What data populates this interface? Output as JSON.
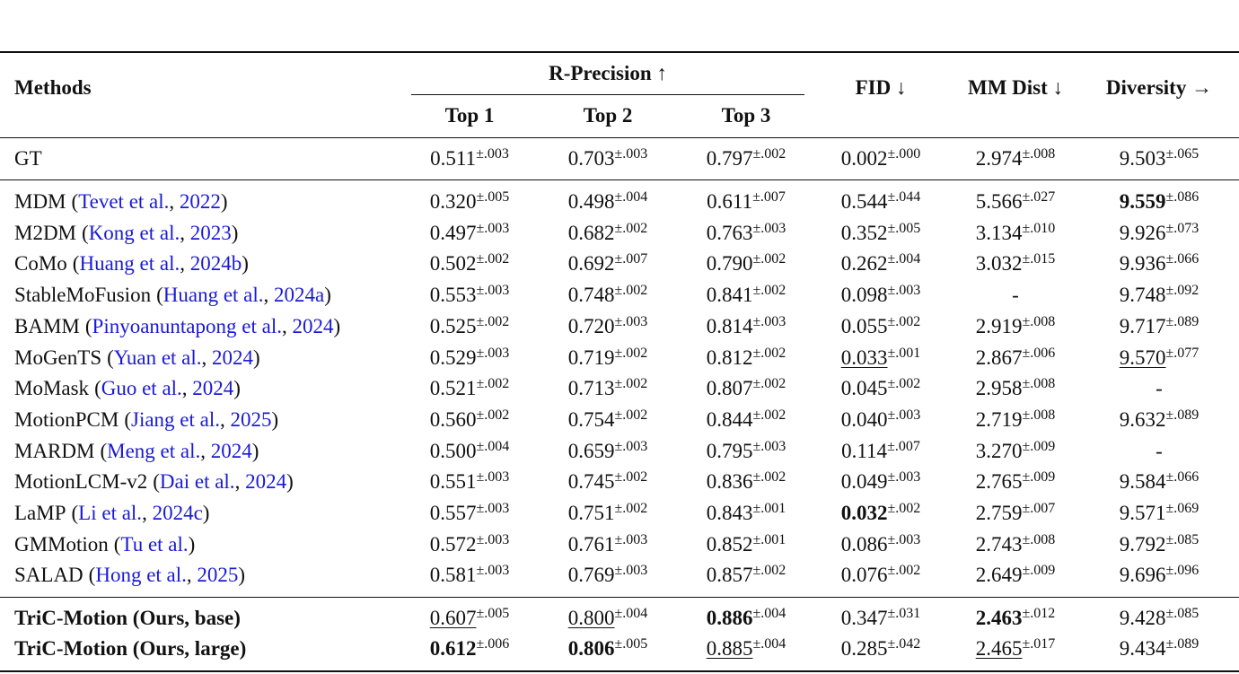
{
  "table": {
    "header": {
      "methods": "Methods",
      "r_precision": "R-Precision ↑",
      "top": [
        "Top 1",
        "Top 2",
        "Top 3"
      ],
      "fid": "FID ↓",
      "mm_dist": "MM Dist ↓",
      "diversity": "Diversity →"
    },
    "groups": [
      {
        "rows": [
          {
            "method": "GT",
            "cells": [
              {
                "v": "0.511",
                "e": "±.003"
              },
              {
                "v": "0.703",
                "e": "±.003"
              },
              {
                "v": "0.797",
                "e": "±.002"
              },
              {
                "v": "0.002",
                "e": "±.000"
              },
              {
                "v": "2.974",
                "e": "±.008"
              },
              {
                "v": "9.503",
                "e": "±.065"
              }
            ]
          }
        ]
      },
      {
        "rows": [
          {
            "method": "MDM",
            "cite": [
              "(",
              {
                "link": "Tevet et al."
              },
              ", ",
              {
                "link": "2022"
              },
              ")"
            ],
            "cells": [
              {
                "v": "0.320",
                "e": "±.005"
              },
              {
                "v": "0.498",
                "e": "±.004"
              },
              {
                "v": "0.611",
                "e": "±.007"
              },
              {
                "v": "0.544",
                "e": "±.044"
              },
              {
                "v": "5.566",
                "e": "±.027"
              },
              {
                "v": "9.559",
                "e": "±.086",
                "bold": true
              }
            ]
          },
          {
            "method": "M2DM",
            "cite": [
              "(",
              {
                "link": "Kong et al."
              },
              ", ",
              {
                "link": "2023"
              },
              ")"
            ],
            "cells": [
              {
                "v": "0.497",
                "e": "±.003"
              },
              {
                "v": "0.682",
                "e": "±.002"
              },
              {
                "v": "0.763",
                "e": "±.003"
              },
              {
                "v": "0.352",
                "e": "±.005"
              },
              {
                "v": "3.134",
                "e": "±.010"
              },
              {
                "v": "9.926",
                "e": "±.073"
              }
            ]
          },
          {
            "method": "CoMo",
            "cite": [
              "(",
              {
                "link": "Huang et al."
              },
              ", ",
              {
                "link": "2024b"
              },
              ")"
            ],
            "cells": [
              {
                "v": "0.502",
                "e": "±.002"
              },
              {
                "v": "0.692",
                "e": "±.007"
              },
              {
                "v": "0.790",
                "e": "±.002"
              },
              {
                "v": "0.262",
                "e": "±.004"
              },
              {
                "v": "3.032",
                "e": "±.015"
              },
              {
                "v": "9.936",
                "e": "±.066"
              }
            ]
          },
          {
            "method": "StableMoFusion",
            "cite": [
              "(",
              {
                "link": "Huang et al."
              },
              ", ",
              {
                "link": "2024a"
              },
              ")"
            ],
            "cells": [
              {
                "v": "0.553",
                "e": "±.003"
              },
              {
                "v": "0.748",
                "e": "±.002"
              },
              {
                "v": "0.841",
                "e": "±.002"
              },
              {
                "v": "0.098",
                "e": "±.003"
              },
              {
                "v": "-"
              },
              {
                "v": "9.748",
                "e": "±.092"
              }
            ]
          },
          {
            "method": "BAMM",
            "cite": [
              "(",
              {
                "link": "Pinyoanuntapong et al."
              },
              ", ",
              {
                "link": "2024"
              },
              ")"
            ],
            "cells": [
              {
                "v": "0.525",
                "e": "±.002"
              },
              {
                "v": "0.720",
                "e": "±.003"
              },
              {
                "v": "0.814",
                "e": "±.003"
              },
              {
                "v": "0.055",
                "e": "±.002"
              },
              {
                "v": "2.919",
                "e": "±.008"
              },
              {
                "v": "9.717",
                "e": "±.089"
              }
            ]
          },
          {
            "method": "MoGenTS",
            "cite": [
              "(",
              {
                "link": "Yuan et al."
              },
              ", ",
              {
                "link": "2024"
              },
              ")"
            ],
            "cells": [
              {
                "v": "0.529",
                "e": "±.003"
              },
              {
                "v": "0.719",
                "e": "±.002"
              },
              {
                "v": "0.812",
                "e": "±.002"
              },
              {
                "v": "0.033",
                "e": "±.001",
                "underline": true
              },
              {
                "v": "2.867",
                "e": "±.006"
              },
              {
                "v": "9.570",
                "e": "±.077",
                "underline": true
              }
            ]
          },
          {
            "method": "MoMask",
            "cite": [
              "(",
              {
                "link": "Guo et al."
              },
              ", ",
              {
                "link": "2024"
              },
              ")"
            ],
            "cells": [
              {
                "v": "0.521",
                "e": "±.002"
              },
              {
                "v": "0.713",
                "e": "±.002"
              },
              {
                "v": "0.807",
                "e": "±.002"
              },
              {
                "v": "0.045",
                "e": "±.002"
              },
              {
                "v": "2.958",
                "e": "±.008"
              },
              {
                "v": "-"
              }
            ]
          },
          {
            "method": "MotionPCM",
            "cite": [
              "(",
              {
                "link": "Jiang et al."
              },
              ", ",
              {
                "link": "2025"
              },
              ")"
            ],
            "cells": [
              {
                "v": "0.560",
                "e": "±.002"
              },
              {
                "v": "0.754",
                "e": "±.002"
              },
              {
                "v": "0.844",
                "e": "±.002"
              },
              {
                "v": "0.040",
                "e": "±.003"
              },
              {
                "v": "2.719",
                "e": "±.008"
              },
              {
                "v": "9.632",
                "e": "±.089"
              }
            ]
          },
          {
            "method": "MARDM",
            "cite": [
              "(",
              {
                "link": "Meng et al."
              },
              ", ",
              {
                "link": "2024"
              },
              ")"
            ],
            "cells": [
              {
                "v": "0.500",
                "e": "±.004"
              },
              {
                "v": "0.659",
                "e": "±.003"
              },
              {
                "v": "0.795",
                "e": "±.003"
              },
              {
                "v": "0.114",
                "e": "±.007"
              },
              {
                "v": "3.270",
                "e": "±.009"
              },
              {
                "v": "-"
              }
            ]
          },
          {
            "method": "MotionLCM-v2",
            "cite": [
              "(",
              {
                "link": "Dai et al."
              },
              ", ",
              {
                "link": "2024"
              },
              ")"
            ],
            "cells": [
              {
                "v": "0.551",
                "e": "±.003"
              },
              {
                "v": "0.745",
                "e": "±.002"
              },
              {
                "v": "0.836",
                "e": "±.002"
              },
              {
                "v": "0.049",
                "e": "±.003"
              },
              {
                "v": "2.765",
                "e": "±.009"
              },
              {
                "v": "9.584",
                "e": "±.066"
              }
            ]
          },
          {
            "method": "LaMP",
            "cite": [
              "(",
              {
                "link": "Li et al."
              },
              ", ",
              {
                "link": "2024c"
              },
              ")"
            ],
            "cells": [
              {
                "v": "0.557",
                "e": "±.003"
              },
              {
                "v": "0.751",
                "e": "±.002"
              },
              {
                "v": "0.843",
                "e": "±.001"
              },
              {
                "v": "0.032",
                "e": "±.002",
                "bold": true
              },
              {
                "v": "2.759",
                "e": "±.007"
              },
              {
                "v": "9.571",
                "e": "±.069"
              }
            ]
          },
          {
            "method": "GMMotion",
            "cite": [
              "(",
              {
                "link": "Tu et al."
              },
              ")"
            ],
            "cells": [
              {
                "v": "0.572",
                "e": "±.003"
              },
              {
                "v": "0.761",
                "e": "±.003"
              },
              {
                "v": "0.852",
                "e": "±.001"
              },
              {
                "v": "0.086",
                "e": "±.003"
              },
              {
                "v": "2.743",
                "e": "±.008"
              },
              {
                "v": "9.792",
                "e": "±.085"
              }
            ]
          },
          {
            "method": "SALAD",
            "cite": [
              "(",
              {
                "link": "Hong et al."
              },
              ", ",
              {
                "link": "2025"
              },
              ")"
            ],
            "cells": [
              {
                "v": "0.581",
                "e": "±.003"
              },
              {
                "v": "0.769",
                "e": "±.003"
              },
              {
                "v": "0.857",
                "e": "±.002"
              },
              {
                "v": "0.076",
                "e": "±.002"
              },
              {
                "v": "2.649",
                "e": "±.009"
              },
              {
                "v": "9.696",
                "e": "±.096"
              }
            ]
          }
        ]
      },
      {
        "rows": [
          {
            "method": "TriC-Motion (Ours, base)",
            "bold": true,
            "cells": [
              {
                "v": "0.607",
                "e": "±.005",
                "underline": true
              },
              {
                "v": "0.800",
                "e": "±.004",
                "underline": true
              },
              {
                "v": "0.886",
                "e": "±.004",
                "bold": true
              },
              {
                "v": "0.347",
                "e": "±.031"
              },
              {
                "v": "2.463",
                "e": "±.012",
                "bold": true
              },
              {
                "v": "9.428",
                "e": "±.085"
              }
            ]
          },
          {
            "method": "TriC-Motion (Ours, large)",
            "bold": true,
            "cells": [
              {
                "v": "0.612",
                "e": "±.006",
                "bold": true
              },
              {
                "v": "0.806",
                "e": "±.005",
                "bold": true
              },
              {
                "v": "0.885",
                "e": "±.004",
                "underline": true
              },
              {
                "v": "0.285",
                "e": "±.042"
              },
              {
                "v": "2.465",
                "e": "±.017",
                "underline": true
              },
              {
                "v": "9.434",
                "e": "±.089"
              }
            ]
          }
        ]
      }
    ]
  }
}
